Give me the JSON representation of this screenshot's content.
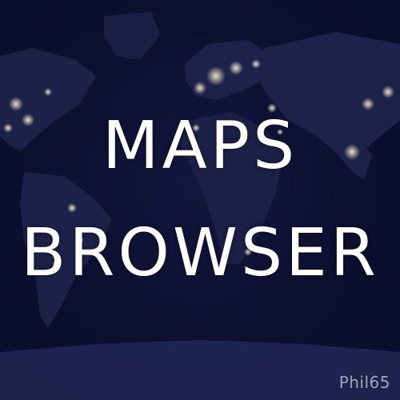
{
  "title": {
    "line1": "MAPS",
    "line2": "BROWSER"
  },
  "credit": "Phil65",
  "colors": {
    "background": "#0b0e2a",
    "land": "#1b2147",
    "lights": "#e8dfb0",
    "text": "#ffffff",
    "credit": "#b8bccb"
  }
}
